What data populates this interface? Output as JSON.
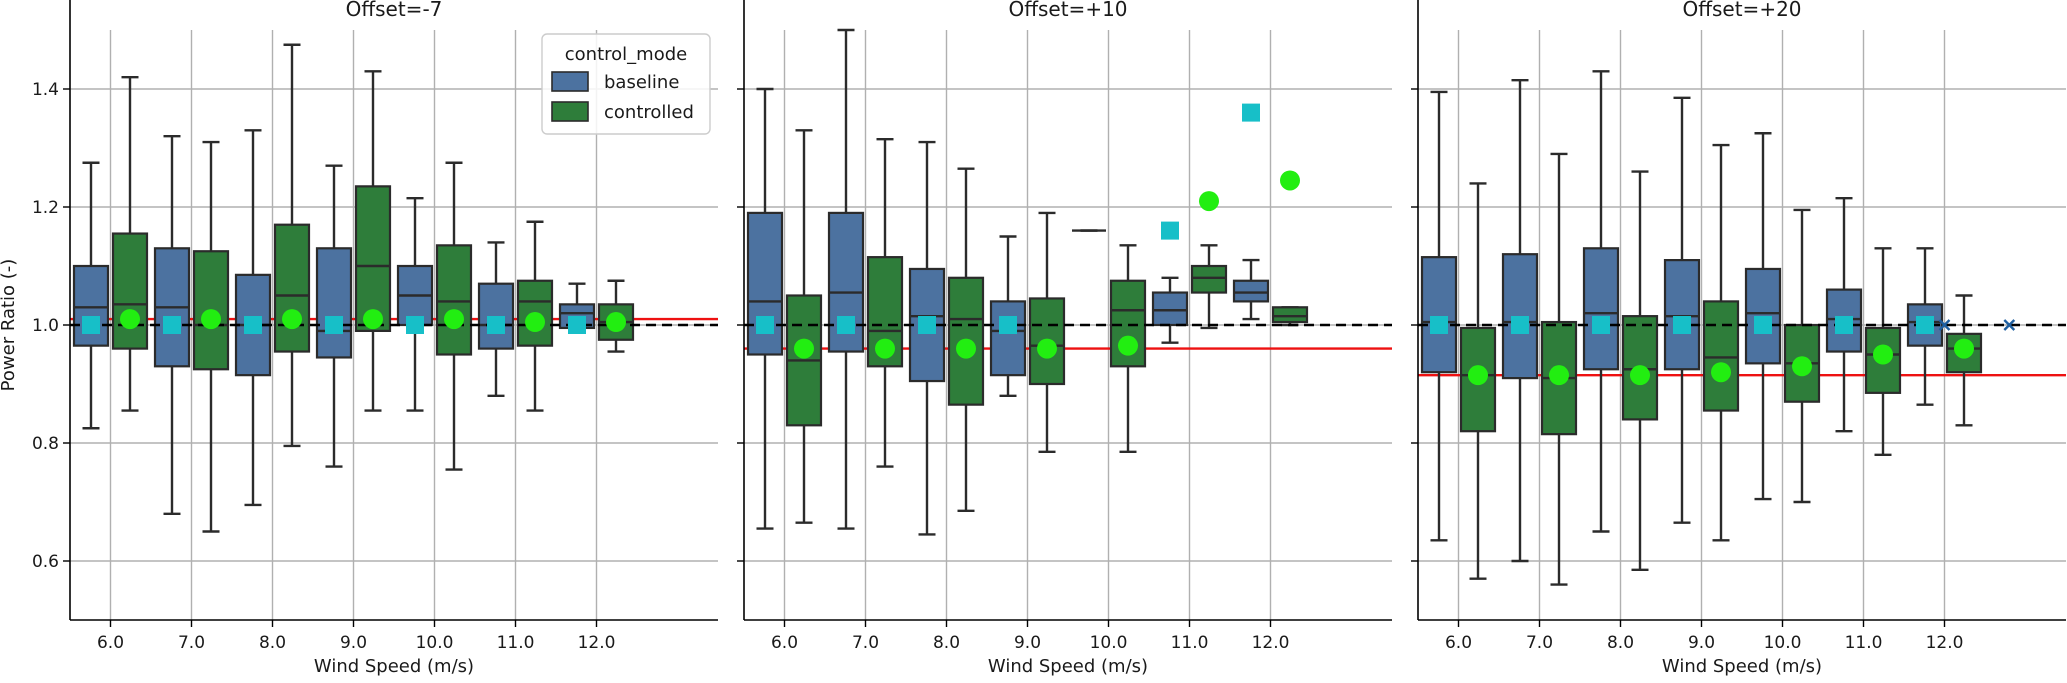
{
  "figure": {
    "ylabel": "Power Ratio (-)",
    "xlabel": "Wind Speed (m/s)"
  },
  "legend": {
    "title": "control_mode",
    "entries": [
      {
        "label": "baseline",
        "color": "#4c72a0"
      },
      {
        "label": "controlled",
        "color": "#2e7d3a"
      }
    ]
  },
  "colors": {
    "baseline_box": "#4c72a0",
    "controlled_box": "#2e7d3a",
    "baseline_mean": "#17bfc8",
    "controlled_mean": "#22ee11",
    "reference_line": "#000000",
    "controlled_mean_line": "#ee1111",
    "baseline_flier": "#1f5fa0"
  },
  "chart_data": [
    {
      "type": "box",
      "title": "Offset=-7",
      "xlabel": "Wind Speed (m/s)",
      "ylabel": "Power Ratio (-)",
      "categories": [
        "6.0",
        "7.0",
        "8.0",
        "9.0",
        "10.0",
        "11.0",
        "12.0"
      ],
      "ylim": [
        0.5,
        1.5
      ],
      "yticks": [
        "0.6",
        "0.8",
        "1.0",
        "1.2",
        "1.4"
      ],
      "grid": true,
      "legend_position": "top-right",
      "reference_line": 1.0,
      "controlled_mean_line": 1.01,
      "series": [
        {
          "name": "baseline",
          "boxes": [
            {
              "min": 0.825,
              "q1": 0.965,
              "median": 1.03,
              "q3": 1.1,
              "max": 1.275,
              "mean": 1.0
            },
            {
              "min": 0.68,
              "q1": 0.93,
              "median": 1.03,
              "q3": 1.13,
              "max": 1.32,
              "mean": 1.0
            },
            {
              "min": 0.695,
              "q1": 0.915,
              "median": 1.0,
              "q3": 1.085,
              "max": 1.33,
              "mean": 1.0
            },
            {
              "min": 0.76,
              "q1": 0.945,
              "median": 0.99,
              "q3": 1.13,
              "max": 1.27,
              "mean": 1.0
            },
            {
              "min": 0.855,
              "q1": 1.0,
              "median": 1.05,
              "q3": 1.1,
              "max": 1.215,
              "mean": 1.0
            },
            {
              "min": 0.88,
              "q1": 0.96,
              "median": 1.0,
              "q3": 1.07,
              "max": 1.14,
              "mean": 1.0
            },
            {
              "min": 0.995,
              "q1": 0.995,
              "median": 1.02,
              "q3": 1.035,
              "max": 1.07,
              "mean": 1.0
            }
          ]
        },
        {
          "name": "controlled",
          "boxes": [
            {
              "min": 0.855,
              "q1": 0.96,
              "median": 1.035,
              "q3": 1.155,
              "max": 1.42,
              "mean": 1.01
            },
            {
              "min": 0.65,
              "q1": 0.925,
              "median": 1.0,
              "q3": 1.125,
              "max": 1.31,
              "mean": 1.01
            },
            {
              "min": 0.795,
              "q1": 0.955,
              "median": 1.05,
              "q3": 1.17,
              "max": 1.475,
              "mean": 1.01
            },
            {
              "min": 0.855,
              "q1": 0.99,
              "median": 1.1,
              "q3": 1.235,
              "max": 1.43,
              "mean": 1.01
            },
            {
              "min": 0.755,
              "q1": 0.95,
              "median": 1.04,
              "q3": 1.135,
              "max": 1.275,
              "mean": 1.01
            },
            {
              "min": 0.855,
              "q1": 0.965,
              "median": 1.04,
              "q3": 1.075,
              "max": 1.175,
              "mean": 1.005
            },
            {
              "min": 0.955,
              "q1": 0.975,
              "median": 1.005,
              "q3": 1.035,
              "max": 1.075,
              "mean": 1.005
            }
          ]
        }
      ],
      "extra_points": []
    },
    {
      "type": "box",
      "title": "Offset=+10",
      "xlabel": "Wind Speed (m/s)",
      "ylabel": "",
      "categories": [
        "6.0",
        "7.0",
        "8.0",
        "9.0",
        "10.0",
        "11.0",
        "12.0"
      ],
      "ylim": [
        0.5,
        1.5
      ],
      "yticks": [
        "0.6",
        "0.8",
        "1.0",
        "1.2",
        "1.4"
      ],
      "grid": true,
      "reference_line": 1.0,
      "controlled_mean_line": 0.96,
      "series": [
        {
          "name": "baseline",
          "boxes": [
            {
              "min": 0.655,
              "q1": 0.95,
              "median": 1.04,
              "q3": 1.19,
              "max": 1.4,
              "mean": 1.0
            },
            {
              "min": 0.655,
              "q1": 0.955,
              "median": 1.055,
              "q3": 1.19,
              "max": 1.5,
              "mean": 1.0
            },
            {
              "min": 0.645,
              "q1": 0.905,
              "median": 1.015,
              "q3": 1.095,
              "max": 1.31,
              "mean": 1.0
            },
            {
              "min": 0.88,
              "q1": 0.915,
              "median": 0.99,
              "q3": 1.04,
              "max": 1.15,
              "mean": 1.0
            },
            {
              "min": 1.16,
              "q1": 1.16,
              "median": 1.16,
              "q3": 1.16,
              "max": 1.16,
              "mean": null
            },
            {
              "min": 0.97,
              "q1": 1.0,
              "median": 1.025,
              "q3": 1.055,
              "max": 1.08,
              "mean": 1.16
            },
            {
              "min": 1.01,
              "q1": 1.04,
              "median": 1.055,
              "q3": 1.075,
              "max": 1.11,
              "mean": 1.36
            }
          ]
        },
        {
          "name": "controlled",
          "boxes": [
            {
              "min": 0.665,
              "q1": 0.83,
              "median": 0.94,
              "q3": 1.05,
              "max": 1.33,
              "mean": 0.96
            },
            {
              "min": 0.76,
              "q1": 0.93,
              "median": 0.99,
              "q3": 1.115,
              "max": 1.315,
              "mean": 0.96
            },
            {
              "min": 0.685,
              "q1": 0.865,
              "median": 1.01,
              "q3": 1.08,
              "max": 1.265,
              "mean": 0.96
            },
            {
              "min": 0.785,
              "q1": 0.9,
              "median": 0.965,
              "q3": 1.045,
              "max": 1.19,
              "mean": 0.96
            },
            {
              "min": 0.785,
              "q1": 0.93,
              "median": 1.025,
              "q3": 1.075,
              "max": 1.135,
              "mean": 0.965
            },
            {
              "min": 0.995,
              "q1": 1.055,
              "median": 1.08,
              "q3": 1.1,
              "max": 1.135,
              "mean": 1.21
            },
            {
              "min": 1.0,
              "q1": 1.005,
              "median": 1.015,
              "q3": 1.03,
              "max": 1.03,
              "mean": 1.245
            }
          ]
        }
      ],
      "extra_points": []
    },
    {
      "type": "box",
      "title": "Offset=+20",
      "xlabel": "Wind Speed (m/s)",
      "ylabel": "",
      "categories": [
        "6.0",
        "7.0",
        "8.0",
        "9.0",
        "10.0",
        "11.0",
        "12.0"
      ],
      "ylim": [
        0.5,
        1.5
      ],
      "yticks": [
        "0.6",
        "0.8",
        "1.0",
        "1.2",
        "1.4"
      ],
      "grid": true,
      "reference_line": 1.0,
      "controlled_mean_line": 0.915,
      "series": [
        {
          "name": "baseline",
          "boxes": [
            {
              "min": 0.635,
              "q1": 0.92,
              "median": 1.005,
              "q3": 1.115,
              "max": 1.395,
              "mean": 1.0
            },
            {
              "min": 0.6,
              "q1": 0.91,
              "median": 1.005,
              "q3": 1.12,
              "max": 1.415,
              "mean": 1.0
            },
            {
              "min": 0.65,
              "q1": 0.925,
              "median": 1.02,
              "q3": 1.13,
              "max": 1.43,
              "mean": 1.0
            },
            {
              "min": 0.665,
              "q1": 0.925,
              "median": 1.015,
              "q3": 1.11,
              "max": 1.385,
              "mean": 1.0
            },
            {
              "min": 0.705,
              "q1": 0.935,
              "median": 1.02,
              "q3": 1.095,
              "max": 1.325,
              "mean": 1.0
            },
            {
              "min": 0.82,
              "q1": 0.955,
              "median": 1.01,
              "q3": 1.06,
              "max": 1.215,
              "mean": 1.0
            },
            {
              "min": 0.865,
              "q1": 0.965,
              "median": 1.005,
              "q3": 1.035,
              "max": 1.13,
              "mean": 1.0
            }
          ]
        },
        {
          "name": "controlled",
          "boxes": [
            {
              "min": 0.57,
              "q1": 0.82,
              "median": 0.915,
              "q3": 0.995,
              "max": 1.24,
              "mean": 0.915
            },
            {
              "min": 0.56,
              "q1": 0.815,
              "median": 0.91,
              "q3": 1.005,
              "max": 1.29,
              "mean": 0.915
            },
            {
              "min": 0.585,
              "q1": 0.84,
              "median": 0.925,
              "q3": 1.015,
              "max": 1.26,
              "mean": 0.915
            },
            {
              "min": 0.635,
              "q1": 0.855,
              "median": 0.945,
              "q3": 1.04,
              "max": 1.305,
              "mean": 0.92
            },
            {
              "min": 0.7,
              "q1": 0.87,
              "median": 0.935,
              "q3": 1.0,
              "max": 1.195,
              "mean": 0.93
            },
            {
              "min": 0.78,
              "q1": 0.885,
              "median": 0.95,
              "q3": 0.995,
              "max": 1.13,
              "mean": 0.95
            },
            {
              "min": 0.83,
              "q1": 0.92,
              "median": 0.96,
              "q3": 0.985,
              "max": 1.05,
              "mean": 0.96
            }
          ]
        }
      ],
      "extra_points": [
        {
          "x": 12.0,
          "y": 1.0,
          "series": "baseline",
          "marker": "x"
        },
        {
          "x": 12.8,
          "y": 1.0,
          "series": "baseline",
          "marker": "x"
        }
      ]
    }
  ]
}
